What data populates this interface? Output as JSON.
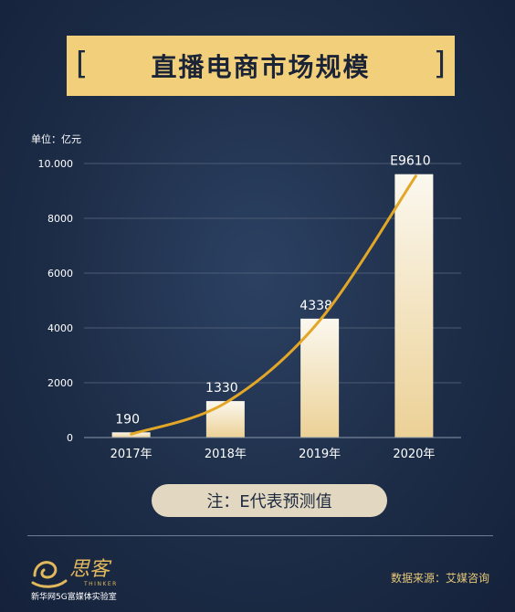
{
  "title": "直播电商市场规模",
  "title_brackets": {
    "left": "[",
    "right": "]"
  },
  "chart_data": {
    "type": "bar",
    "unit_label": "单位：亿元",
    "categories": [
      "2017年",
      "2018年",
      "2019年",
      "2020年"
    ],
    "values": [
      190,
      1330,
      4338,
      9610
    ],
    "data_labels": [
      "190",
      "1330",
      "4338",
      "E9610"
    ],
    "ylim": [
      0,
      10000
    ],
    "yticks": [
      0,
      2000,
      4000,
      6000,
      8000,
      10000
    ],
    "ytick_labels": [
      "0",
      "2000",
      "4000",
      "6000",
      "8000",
      "10.000"
    ],
    "grid": true,
    "trend_line": true,
    "colors": {
      "bar_top": "#fbf8ef",
      "bar_bottom": "#ecd196",
      "trend": "#e3a727",
      "grid": "#4b5b74"
    }
  },
  "note": "注：E代表预测值",
  "footer": {
    "logo_text": "思客",
    "logo_subtext": "THINKER",
    "logo_caption": "新华网5G富媒体实验室",
    "source": "数据来源：艾媒咨询"
  }
}
